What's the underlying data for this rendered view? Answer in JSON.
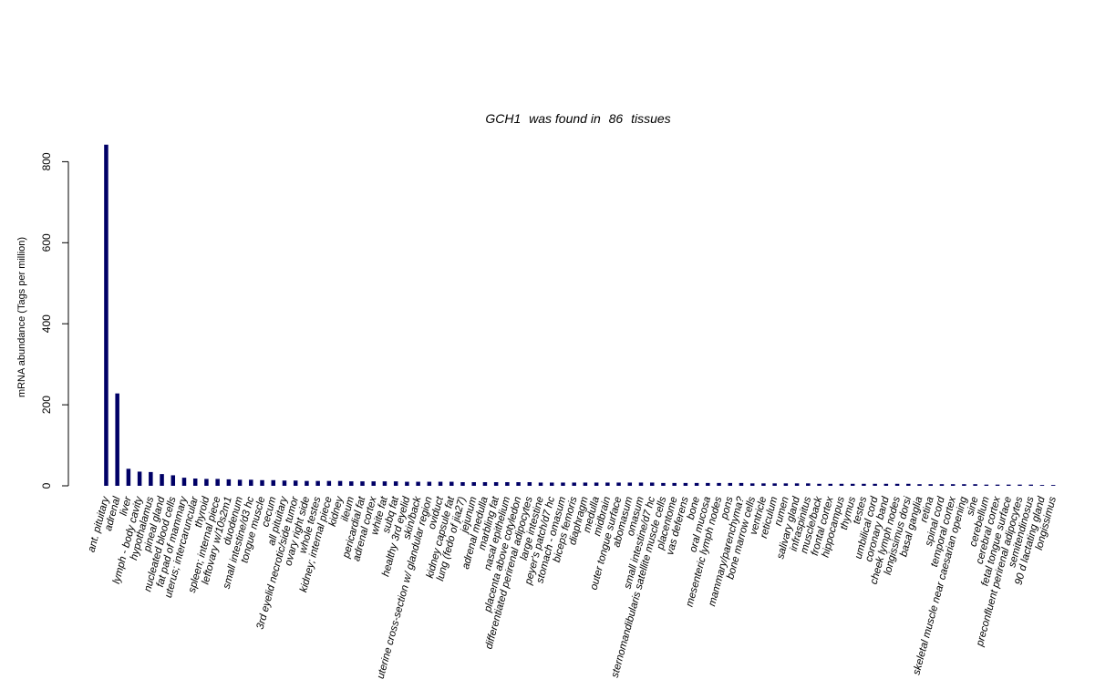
{
  "chart_data": {
    "type": "bar",
    "title_parts": [
      "GCH1",
      "was found in",
      "86",
      "tissues"
    ],
    "ylabel": "mRNA abundance (Tags per million)",
    "xlabel": "",
    "ylim": [
      0,
      850
    ],
    "yticks": [
      0,
      200,
      400,
      600,
      800
    ],
    "grid": false,
    "legend": "none",
    "bar_color": "#000066",
    "categories": [
      "ant. pituitary",
      "adrenal",
      "liver",
      "lymph - body cavity",
      "hypothalamus",
      "pineal gland",
      "nucleated blood cells",
      "fat pad of mammary",
      "uterus; intercaruncular",
      "thyroid",
      "spleen; internal piece",
      "leftovary w/10s2m1",
      "duodenum",
      "small intestine/d3 hc",
      "tongue muscle",
      "cecum",
      "all pituitary",
      "3rd eyelid necrotic/side tumor",
      "ovary right side",
      "whole testes",
      "kidney; internal piece",
      "kidney",
      "ileum",
      "pericardial fat",
      "adrenal cortex",
      "white fat",
      "subq fat",
      "healthy 3rd eyelid",
      "skin/back",
      "uterine cross-section w/ glandular region",
      "oviduct",
      "kidney capsule fat",
      "lung (fedo of jia27)",
      "jejunum",
      "adrenal medulla",
      "marbling fat",
      "nasal epithelium",
      "placenta above cotyledon",
      "differentiated perirenal adipocytes",
      "large intestine",
      "peyer's patch/d7 hc",
      "stomach - omasum",
      "biceps femoris",
      "diaphragm",
      "medulla",
      "midbrain",
      "outer tongue surface",
      "abomasum",
      "omasum",
      "small intestine/d7 hc",
      "sternomandibularis satellite muscle cells",
      "placentome",
      "vas deferens",
      "bone",
      "oral mucosa",
      "mesenteric lymph nodes",
      "pons",
      "mammary/parenchyma?",
      "bone marrow cells",
      "ventricle",
      "reticulum",
      "rumen",
      "salivary gland",
      "infraspinitus",
      "muscle/back",
      "frontal cortex",
      "hippocampus",
      "thymus",
      "testes",
      "umbilical cord",
      "coronary band",
      "cheek lymph nodes",
      "longissimus dorsi",
      "basal ganglia",
      "retina",
      "spinal cord",
      "temporal cortex",
      "skeletal muscle near caesarian opening",
      "sine",
      "cerebellum",
      "cerebral cortex",
      "fetal tongue surface",
      "preconfluent perirenal adipocytes",
      "semitendinosus",
      "90 d lactating gland",
      "longissimus"
    ],
    "values": [
      842,
      228,
      42,
      35,
      34,
      29,
      26,
      20,
      18,
      17,
      17,
      16,
      15,
      15,
      14,
      14,
      13,
      13,
      12,
      12,
      12,
      12,
      11,
      11,
      11,
      11,
      11,
      10,
      10,
      10,
      10,
      10,
      9,
      9,
      9,
      9,
      9,
      9,
      9,
      8,
      8,
      8,
      8,
      8,
      8,
      8,
      8,
      8,
      8,
      8,
      7,
      7,
      7,
      7,
      7,
      7,
      7,
      7,
      6,
      6,
      6,
      6,
      6,
      6,
      5,
      5,
      5,
      5,
      5,
      5,
      5,
      5,
      5,
      4,
      4,
      4,
      4,
      4,
      4,
      3,
      3,
      3,
      3,
      3,
      2,
      2
    ]
  }
}
